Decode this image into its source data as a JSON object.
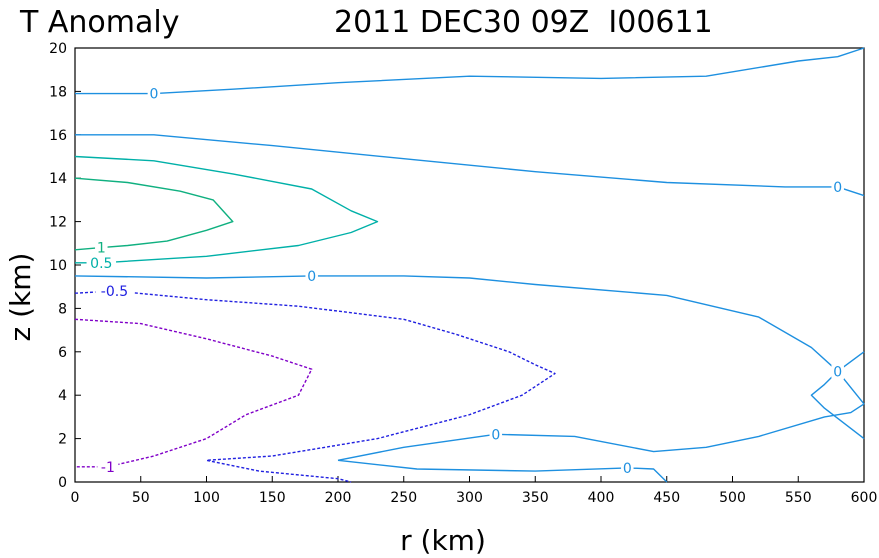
{
  "chart_data": {
    "type": "contour",
    "title_left": "T Anomaly",
    "title_right": "2011 DEC30 09Z  I00611",
    "xlabel": "r (km)",
    "ylabel": "z (km)",
    "xlim": [
      0,
      600
    ],
    "ylim": [
      0,
      20
    ],
    "xticks": [
      0,
      50,
      100,
      150,
      200,
      250,
      300,
      350,
      400,
      450,
      500,
      550,
      600
    ],
    "yticks": [
      0,
      2,
      4,
      6,
      8,
      10,
      12,
      14,
      16,
      18,
      20
    ],
    "grid": false,
    "colors": {
      "zero": "#1e90e0",
      "pos_0_5": "#00b0a8",
      "pos_1": "#10b080",
      "neg_0_5": "#2020e0",
      "neg_1": "#8000c8"
    },
    "contours": [
      {
        "level": 0,
        "label": "0",
        "color": "#1e90e0",
        "dashed": false,
        "points": [
          [
            0,
            17.9
          ],
          [
            60,
            17.9
          ],
          [
            120,
            18.1
          ],
          [
            200,
            18.4
          ],
          [
            300,
            18.7
          ],
          [
            400,
            18.6
          ],
          [
            480,
            18.7
          ],
          [
            550,
            19.4
          ],
          [
            580,
            19.6
          ],
          [
            600,
            20
          ]
        ],
        "label_at": [
          60,
          17.9
        ]
      },
      {
        "level": 0,
        "label": "0",
        "color": "#1e90e0",
        "dashed": false,
        "points": [
          [
            0,
            16.0
          ],
          [
            60,
            16.0
          ],
          [
            150,
            15.5
          ],
          [
            250,
            14.9
          ],
          [
            350,
            14.3
          ],
          [
            450,
            13.8
          ],
          [
            540,
            13.6
          ],
          [
            580,
            13.6
          ],
          [
            600,
            13.2
          ]
        ],
        "label_at": [
          580,
          13.6
        ]
      },
      {
        "level": 0,
        "label": "0",
        "color": "#1e90e0",
        "dashed": false,
        "points": [
          [
            0,
            9.5
          ],
          [
            100,
            9.4
          ],
          [
            180,
            9.5
          ],
          [
            250,
            9.5
          ],
          [
            300,
            9.4
          ],
          [
            350,
            9.1
          ],
          [
            450,
            8.6
          ],
          [
            520,
            7.6
          ],
          [
            560,
            6.2
          ],
          [
            580,
            5.1
          ],
          [
            600,
            3.6
          ]
        ],
        "label_at": [
          180,
          9.5
        ]
      },
      {
        "level": 0,
        "label": "0",
        "color": "#1e90e0",
        "dashed": false,
        "points": [
          [
            600,
            6.0
          ],
          [
            580,
            5.1
          ],
          [
            570,
            4.5
          ],
          [
            560,
            4.0
          ],
          [
            570,
            3.4
          ],
          [
            600,
            2.0
          ]
        ],
        "label_at": [
          580,
          5.1
        ]
      },
      {
        "level": 0,
        "label": "0",
        "color": "#1e90e0",
        "dashed": false,
        "points": [
          [
            200,
            1.0
          ],
          [
            250,
            1.6
          ],
          [
            320,
            2.2
          ],
          [
            380,
            2.1
          ],
          [
            440,
            1.4
          ],
          [
            480,
            1.6
          ],
          [
            520,
            2.1
          ],
          [
            570,
            3.0
          ],
          [
            590,
            3.2
          ],
          [
            600,
            3.6
          ]
        ],
        "label_at": [
          320,
          2.2
        ]
      },
      {
        "level": 0,
        "label": "0",
        "color": "#1e90e0",
        "dashed": false,
        "points": [
          [
            200,
            1.0
          ],
          [
            260,
            0.6
          ],
          [
            350,
            0.5
          ],
          [
            420,
            0.65
          ],
          [
            440,
            0.6
          ],
          [
            450,
            0
          ]
        ],
        "label_at": [
          420,
          0.65
        ]
      },
      {
        "level": 0.5,
        "label": "0.5",
        "color": "#00b0a8",
        "dashed": false,
        "points": [
          [
            0,
            15.0
          ],
          [
            60,
            14.8
          ],
          [
            120,
            14.2
          ],
          [
            180,
            13.5
          ],
          [
            210,
            12.5
          ],
          [
            230,
            12.0
          ],
          [
            210,
            11.5
          ],
          [
            170,
            10.9
          ],
          [
            100,
            10.4
          ],
          [
            20,
            10.1
          ],
          [
            0,
            10.1
          ]
        ],
        "label_at": [
          20,
          10.1
        ]
      },
      {
        "level": 1,
        "label": "1",
        "color": "#10b080",
        "dashed": false,
        "points": [
          [
            0,
            14.0
          ],
          [
            40,
            13.8
          ],
          [
            80,
            13.4
          ],
          [
            105,
            13.0
          ],
          [
            120,
            12.0
          ],
          [
            100,
            11.6
          ],
          [
            70,
            11.1
          ],
          [
            40,
            10.9
          ],
          [
            20,
            10.8
          ],
          [
            0,
            10.7
          ]
        ],
        "label_at": [
          20,
          10.8
        ]
      },
      {
        "level": -0.5,
        "label": "-0.5",
        "color": "#2020e0",
        "dashed": true,
        "points": [
          [
            0,
            8.7
          ],
          [
            30,
            8.8
          ],
          [
            100,
            8.4
          ],
          [
            170,
            8.1
          ],
          [
            250,
            7.5
          ],
          [
            290,
            6.8
          ],
          [
            330,
            6.0
          ],
          [
            350,
            5.4
          ],
          [
            365,
            5.0
          ],
          [
            340,
            4.0
          ],
          [
            300,
            3.1
          ],
          [
            230,
            2.0
          ],
          [
            150,
            1.2
          ],
          [
            100,
            1.0
          ],
          [
            140,
            0.5
          ],
          [
            200,
            0.15
          ],
          [
            210,
            0
          ]
        ],
        "label_at": [
          30,
          8.8
        ]
      },
      {
        "level": -1,
        "label": "-1",
        "color": "#8000c8",
        "dashed": true,
        "points": [
          [
            0,
            7.5
          ],
          [
            50,
            7.3
          ],
          [
            100,
            6.6
          ],
          [
            150,
            5.8
          ],
          [
            180,
            5.2
          ],
          [
            170,
            4.0
          ],
          [
            130,
            3.1
          ],
          [
            100,
            2.0
          ],
          [
            60,
            1.2
          ],
          [
            25,
            0.7
          ],
          [
            0,
            0.7
          ]
        ],
        "label_at": [
          25,
          0.7
        ]
      }
    ]
  }
}
